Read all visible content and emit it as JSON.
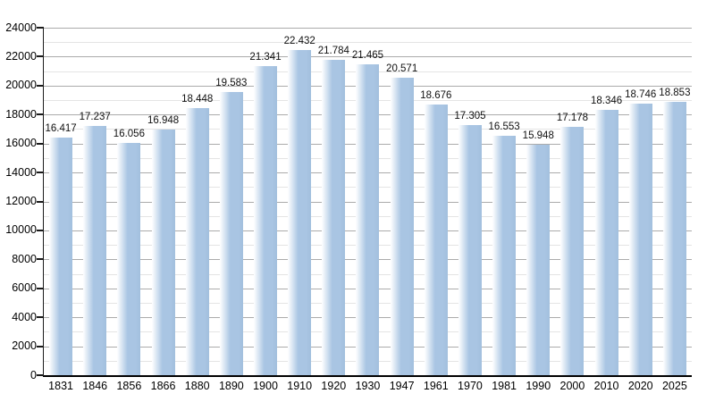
{
  "chart_data": {
    "type": "bar",
    "title": "",
    "xlabel": "",
    "ylabel": "",
    "categories": [
      "1831",
      "1846",
      "1856",
      "1866",
      "1880",
      "1890",
      "1900",
      "1910",
      "1920",
      "1930",
      "1947",
      "1961",
      "1970",
      "1981",
      "1990",
      "2000",
      "2010",
      "2020",
      "2025"
    ],
    "values": [
      16417,
      17237,
      16056,
      16948,
      18448,
      19583,
      21341,
      22432,
      21784,
      21465,
      20571,
      18676,
      17305,
      16553,
      15948,
      17178,
      18346,
      18746,
      18853
    ],
    "value_labels": [
      "16.417",
      "17.237",
      "16.056",
      "16.948",
      "18.448",
      "19.583",
      "21.341",
      "22.432",
      "21.784",
      "21.465",
      "20.571",
      "18.676",
      "17.305",
      "16.553",
      "15.948",
      "17.178",
      "18.346",
      "18.746",
      "18.853"
    ],
    "ylim": [
      0,
      24000
    ],
    "y_major_step": 2000,
    "y_minor_step": 1000,
    "y_tick_labels": [
      "0",
      "2000",
      "4000",
      "6000",
      "8000",
      "10000",
      "12000",
      "14000",
      "16000",
      "18000",
      "20000",
      "22000",
      "24000"
    ],
    "grid": "on",
    "legend": "none",
    "colors": {
      "bar_main": "#a9c5e3",
      "bar_fade_left": "#ffffff",
      "bar_edge_right": "#a2bfdd",
      "gridline_major": "#ababab",
      "gridline_minor": "#e4e4e4",
      "axis": "#000000",
      "text": "#000000",
      "background": "#ffffff"
    }
  }
}
